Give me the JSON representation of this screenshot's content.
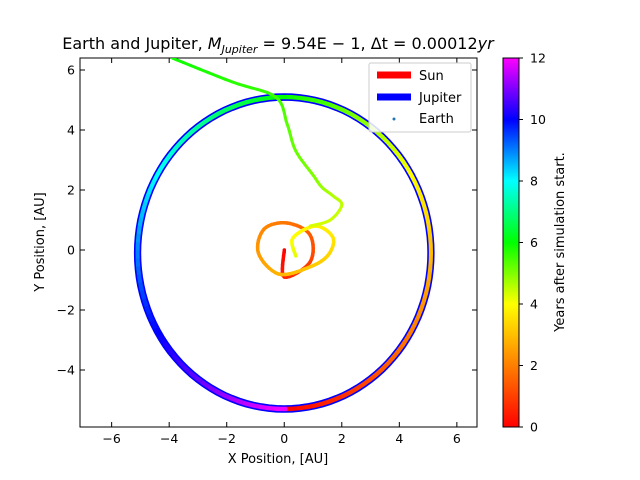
{
  "chart_data": {
    "type": "line",
    "title": "Earth and Jupiter, M_Jupiter = 9.54E − 1, Δt = 0.00012yr",
    "title_parts": {
      "lead": "Earth and Jupiter, ",
      "m_symbol": "M",
      "m_subscript": "Jupiter",
      "m_value": " = 9.54E − 1, ",
      "dt_symbol": "Δt",
      "dt_value": " = 0.00012",
      "dt_unit": "yr"
    },
    "xlabel": "X Position, [AU]",
    "ylabel": "Y Position, [AU]",
    "xlim": [
      -7.1,
      6.7
    ],
    "ylim": [
      -5.9,
      6.4
    ],
    "xticks": [
      -6,
      -4,
      -2,
      0,
      2,
      4,
      6
    ],
    "yticks": [
      -4,
      -2,
      0,
      2,
      4,
      6
    ],
    "xtick_labels": [
      "−6",
      "−4",
      "−2",
      "0",
      "2",
      "4",
      "6"
    ],
    "ytick_labels": [
      "−4",
      "−2",
      "0",
      "2",
      "4",
      "6"
    ],
    "grid": false,
    "legend": {
      "placement": "top-right",
      "entries": [
        {
          "label": "Sun",
          "color": "#ff0000"
        },
        {
          "label": "Jupiter",
          "color": "#0000ff"
        },
        {
          "label": "Earth",
          "color": "#1f77b4"
        }
      ]
    },
    "colorbar": {
      "label": "Years after simulation start.",
      "range": [
        0,
        12
      ],
      "ticks": [
        0,
        2,
        4,
        6,
        8,
        10,
        12
      ],
      "tick_labels": [
        "0",
        "2",
        "4",
        "6",
        "8",
        "10",
        "12"
      ],
      "colormap": "gist_rainbow_r",
      "stops": [
        "#ff0000",
        "#ff7f00",
        "#ffff00",
        "#00ff00",
        "#00ffff",
        "#0000ff",
        "#ff00ff"
      ]
    },
    "series": [
      {
        "name": "Jupiter",
        "color": "#0000ff",
        "kind": "orbit",
        "center": [
          0.0,
          -0.1
        ],
        "rx": 5.1,
        "ry": 5.2
      },
      {
        "name": "Sun",
        "color": "#ff0000",
        "kind": "orbit",
        "points": [
          [
            0,
            0.0,
            0.0
          ],
          [
            0.5,
            0.0,
            -0.9
          ],
          [
            1.0,
            0.9,
            -0.4
          ],
          [
            1.4,
            0.9,
            0.5
          ],
          [
            1.8,
            0.1,
            0.9
          ],
          [
            2.1,
            -0.7,
            0.7
          ],
          [
            2.4,
            -0.9,
            -0.1
          ],
          [
            2.8,
            -0.2,
            -0.8
          ],
          [
            3.1,
            0.8,
            -0.6
          ],
          [
            3.3,
            1.5,
            -0.2
          ],
          [
            3.6,
            1.7,
            0.4
          ],
          [
            3.8,
            1.1,
            0.8
          ],
          [
            4.0,
            0.3,
            0.4
          ],
          [
            4.2,
            0.4,
            -0.2
          ]
        ]
      },
      {
        "name": "Earth",
        "color": "#1f77b4",
        "kind": "trail",
        "points": [
          [
            4.3,
            0.9,
            0.8
          ],
          [
            4.4,
            1.6,
            1.0
          ],
          [
            4.5,
            2.0,
            1.5
          ],
          [
            4.6,
            1.7,
            1.8
          ],
          [
            4.8,
            1.3,
            2.1
          ],
          [
            5.0,
            1.0,
            2.5
          ],
          [
            5.2,
            0.4,
            3.3
          ],
          [
            5.3,
            0.1,
            4.2
          ],
          [
            5.5,
            -0.3,
            5.1
          ],
          [
            5.7,
            -1.8,
            5.6
          ],
          [
            5.9,
            -3.9,
            6.4
          ]
        ]
      }
    ]
  }
}
